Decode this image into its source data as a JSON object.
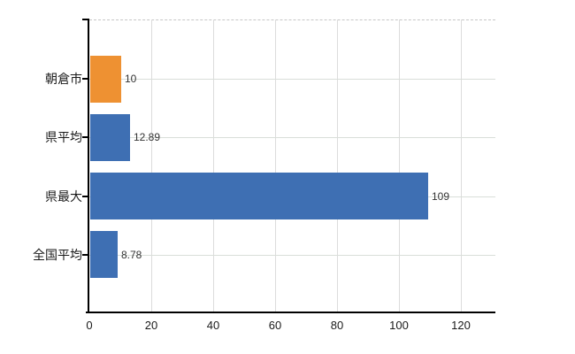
{
  "chart_data": {
    "type": "bar",
    "orientation": "horizontal",
    "title": "",
    "categories": [
      "朝倉市",
      "県平均",
      "県最大",
      "全国平均"
    ],
    "values": [
      10,
      12.89,
      109,
      8.78
    ],
    "value_labels": [
      "10",
      "12.89",
      "109",
      "8.78"
    ],
    "bar_colors": [
      "#EE9132",
      "#3E6FB3",
      "#3E6FB3",
      "#3E6FB3"
    ],
    "highlighted_category": "朝倉市",
    "x_tick_labels": [
      "0",
      "20",
      "40",
      "60",
      "80",
      "100",
      "120"
    ],
    "x_tick_values": [
      0,
      20,
      40,
      60,
      80,
      100,
      120
    ],
    "xlim": [
      0,
      131
    ],
    "grid": true,
    "legend_position": "none"
  },
  "colors": {
    "highlight_orange": "#EE9132",
    "base_blue": "#3E6FB3",
    "axis": "#000000",
    "gridline": "#dcdcdc",
    "text": "#1a1a1a"
  }
}
